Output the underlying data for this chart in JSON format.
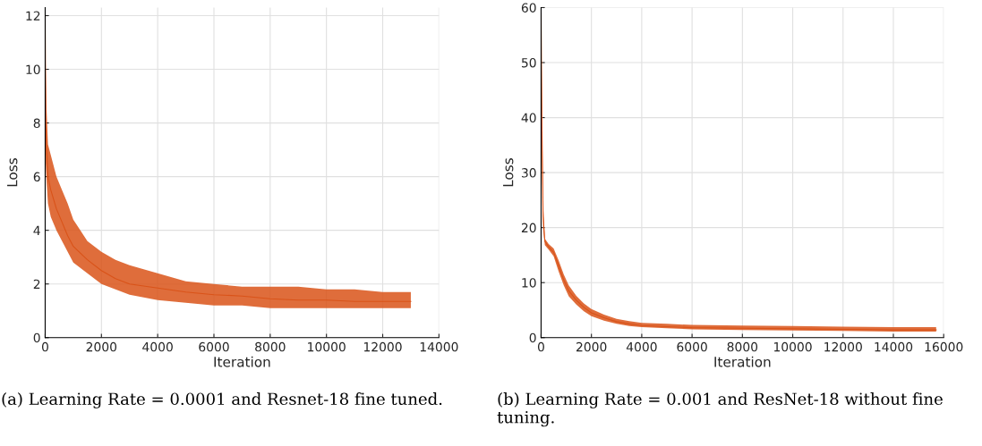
{
  "chart_data": [
    {
      "type": "line",
      "xlabel": "Iteration",
      "ylabel": "Loss",
      "xlim": [
        0,
        14000
      ],
      "ylim": [
        0,
        12.3
      ],
      "xticks": [
        0,
        2000,
        4000,
        6000,
        8000,
        10000,
        12000,
        14000
      ],
      "yticks": [
        0,
        2,
        4,
        6,
        8,
        10,
        12
      ],
      "grid": true,
      "annotations": [
        "(a) Learning Rate = 0.0001 and Resnet-18 fine tuned."
      ],
      "series": [
        {
          "color": "#d95319",
          "x": [
            0,
            20,
            50,
            100,
            200,
            400,
            600,
            800,
            1000,
            1500,
            2000,
            2500,
            3000,
            4000,
            5000,
            6000,
            7000,
            8000,
            9000,
            10000,
            11000,
            12000,
            13000
          ],
          "values": [
            12.1,
            8,
            7,
            6,
            5.5,
            4.8,
            4.3,
            3.8,
            3.4,
            2.9,
            2.5,
            2.2,
            2.0,
            1.85,
            1.7,
            1.6,
            1.55,
            1.45,
            1.4,
            1.4,
            1.35,
            1.35,
            1.35
          ],
          "lower": [
            10,
            6.5,
            5.8,
            5,
            4.5,
            4,
            3.6,
            3.2,
            2.8,
            2.4,
            2.0,
            1.8,
            1.6,
            1.4,
            1.3,
            1.2,
            1.2,
            1.1,
            1.1,
            1.1,
            1.1,
            1.1,
            1.1
          ],
          "upper": [
            12.1,
            10,
            8.5,
            7.2,
            6.8,
            6,
            5.5,
            5,
            4.4,
            3.6,
            3.2,
            2.9,
            2.7,
            2.4,
            2.1,
            2.0,
            1.9,
            1.9,
            1.9,
            1.8,
            1.8,
            1.7,
            1.7
          ]
        }
      ]
    },
    {
      "type": "line",
      "xlabel": "Iteration",
      "ylabel": "Loss",
      "xlim": [
        0,
        16000
      ],
      "ylim": [
        0,
        60
      ],
      "xticks": [
        0,
        2000,
        4000,
        6000,
        8000,
        10000,
        12000,
        14000,
        16000
      ],
      "yticks": [
        0,
        10,
        20,
        30,
        40,
        50,
        60
      ],
      "grid": true,
      "annotations": [
        "(b) Learning Rate = 0.001 and ResNet-18 without fine tuning."
      ],
      "series": [
        {
          "color": "#d95319",
          "x": [
            0,
            30,
            80,
            150,
            300,
            500,
            700,
            900,
            1100,
            1400,
            1700,
            2000,
            2500,
            3000,
            3500,
            4000,
            5000,
            6000,
            8000,
            10000,
            12000,
            14000,
            15700
          ],
          "values": [
            60,
            40,
            22,
            17.5,
            16.5,
            15.5,
            13,
            10.5,
            8.5,
            6.8,
            5.5,
            4.5,
            3.6,
            2.9,
            2.5,
            2.2,
            2.0,
            1.8,
            1.7,
            1.6,
            1.5,
            1.4,
            1.4
          ],
          "lower": [
            55,
            35,
            20,
            16.8,
            16,
            14.8,
            12,
            9.5,
            7.5,
            6,
            4.8,
            3.9,
            3.1,
            2.5,
            2.1,
            1.9,
            1.7,
            1.5,
            1.4,
            1.3,
            1.2,
            1.1,
            1.1
          ],
          "upper": [
            60,
            45,
            24,
            18,
            17,
            16.2,
            14,
            11.5,
            9.5,
            7.6,
            6.2,
            5.2,
            4.2,
            3.4,
            3.0,
            2.7,
            2.5,
            2.3,
            2.2,
            2.1,
            2.0,
            1.9,
            1.9
          ]
        }
      ]
    }
  ]
}
